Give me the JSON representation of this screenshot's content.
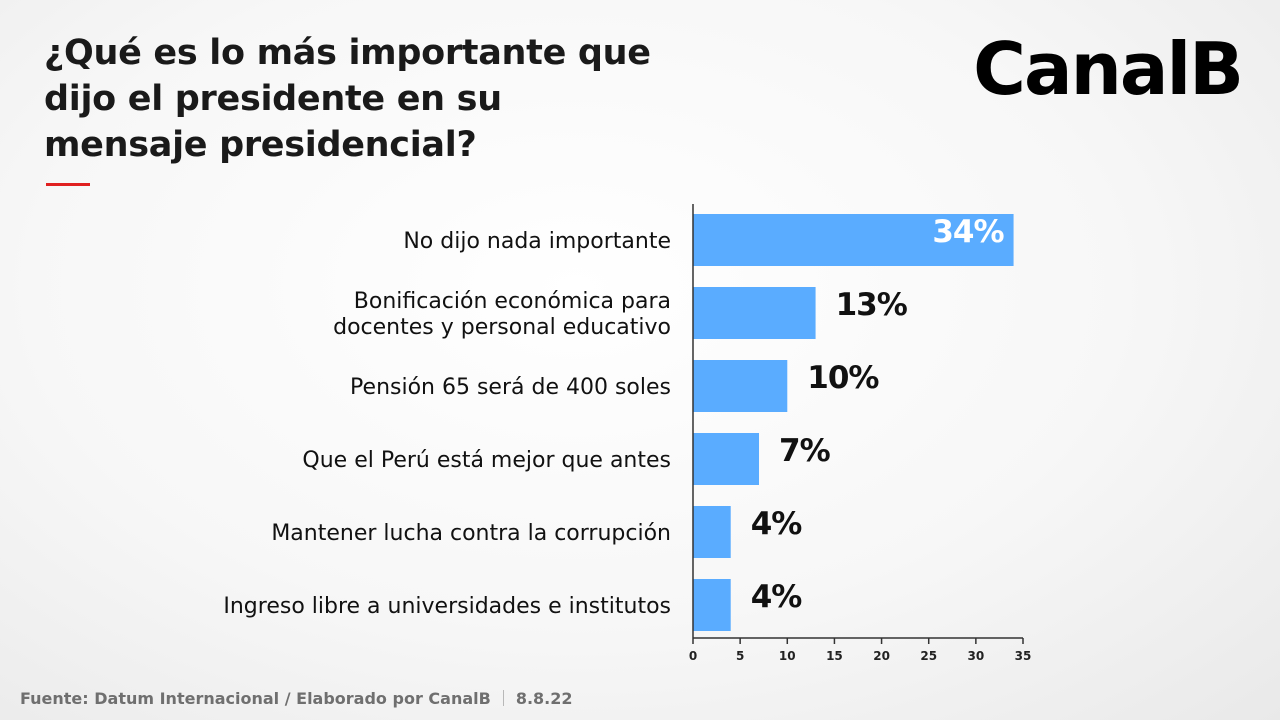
{
  "title_lines": [
    "¿Qué es lo más importante que",
    "dijo el presidente en su",
    "mensaje presidencial?"
  ],
  "logo": "CanalB",
  "colors": {
    "bar": "#5aacff",
    "accent": "#e02020",
    "axis": "#333333",
    "label_outside": "#111111",
    "label_inside": "#ffffff"
  },
  "chart_data": {
    "type": "bar",
    "orientation": "horizontal",
    "categories": [
      [
        "No dijo nada importante"
      ],
      [
        "Bonificación económica para",
        "docentes y personal educativo"
      ],
      [
        "Pensión 65 será de 400 soles"
      ],
      [
        "Que el Perú está mejor que antes"
      ],
      [
        "Mantener lucha contra la corrupción"
      ],
      [
        "Ingreso libre a universidades e institutos"
      ]
    ],
    "values": [
      34,
      13,
      10,
      7,
      4,
      4
    ],
    "data_labels": [
      "34%",
      "13%",
      "10%",
      "7%",
      "4%",
      "4%"
    ],
    "xlim": [
      0,
      35
    ],
    "xticks": [
      0,
      5,
      10,
      15,
      20,
      25,
      30,
      35
    ],
    "grid": false,
    "legend": "none"
  },
  "footer": {
    "source": "Fuente: Datum Internacional / Elaborado por CanalB",
    "date": "8.8.22"
  }
}
